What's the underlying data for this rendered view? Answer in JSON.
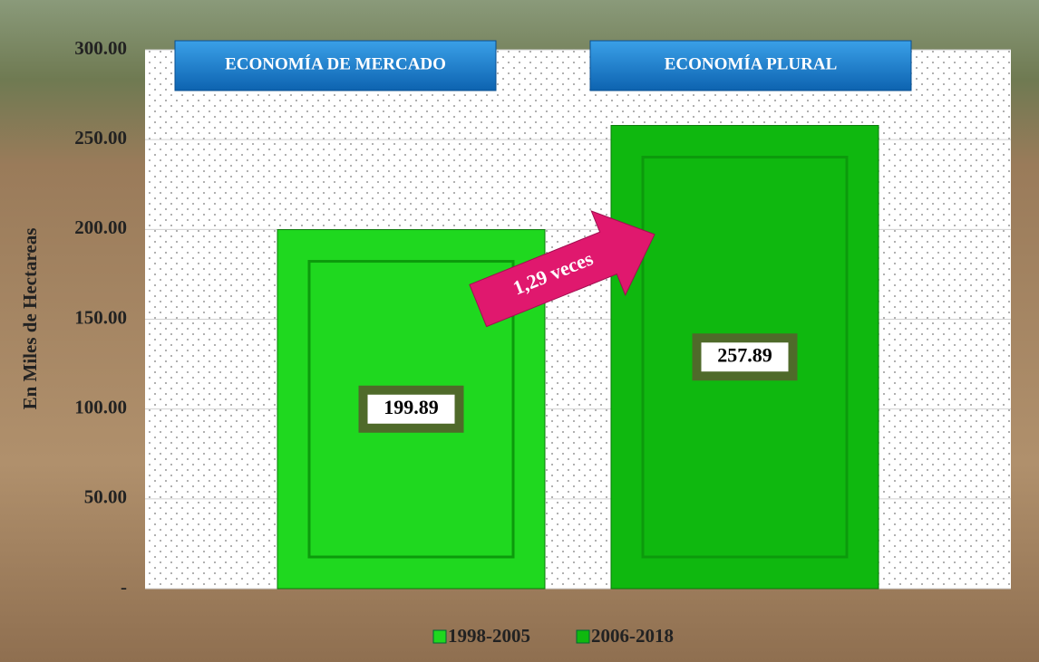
{
  "chart_data": {
    "type": "bar",
    "ylabel": "En Miles de Hectareas",
    "categories": [
      null
    ],
    "series": [
      {
        "name": "1998-2005",
        "color": "#1fd81f",
        "values": [
          199.89
        ]
      },
      {
        "name": "2006-2018",
        "color": "#0fb80f",
        "values": [
          257.89
        ]
      }
    ],
    "ylim": [
      0,
      300
    ],
    "yticks": [
      {
        "value": 0,
        "label": "-"
      },
      {
        "value": 50,
        "label": "50.00"
      },
      {
        "value": 100,
        "label": "100.00"
      },
      {
        "value": 150,
        "label": "150.00"
      },
      {
        "value": 200,
        "label": "200.00"
      },
      {
        "value": 250,
        "label": "250.00"
      },
      {
        "value": 300,
        "label": "300.00"
      }
    ],
    "grid": true,
    "legend": "bottom",
    "annotations": [
      "ECONOMÍA DE MERCADO",
      "ECONOMÍA PLURAL",
      "1,29 veces"
    ]
  }
}
